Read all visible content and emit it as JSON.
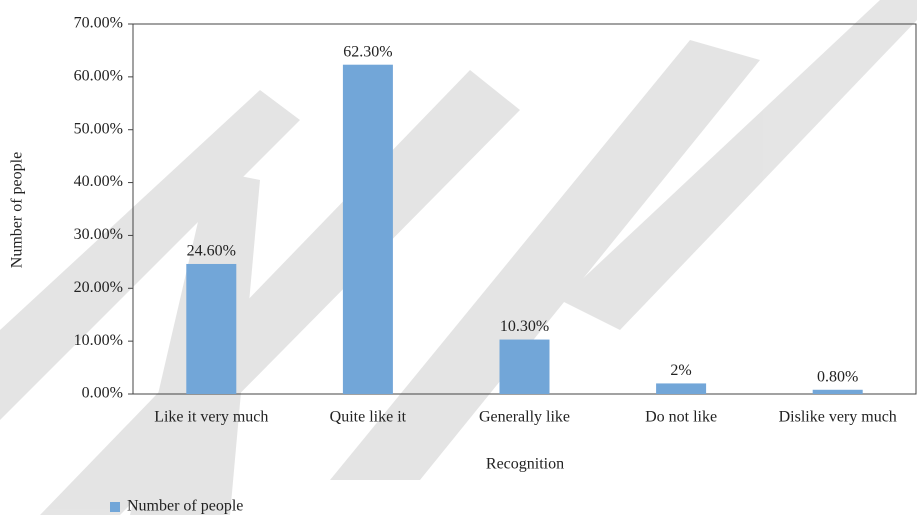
{
  "chart_data": {
    "type": "bar",
    "x_label": "Recognition",
    "y_label": "Number of people",
    "categories": [
      "Like it very much",
      "Quite like it",
      "Generally like",
      "Do not like",
      "Dislike very much"
    ],
    "series": [
      {
        "name": "Number of people",
        "color": "#72a6d8",
        "values": [
          24.6,
          62.3,
          10.3,
          2,
          0.8
        ],
        "value_labels": [
          "24.60%",
          "62.30%",
          "10.30%",
          "2%",
          "0.80%"
        ]
      }
    ],
    "ylim": [
      0,
      70
    ],
    "yticks": [
      {
        "value": 0,
        "label": "0.00%"
      },
      {
        "value": 10,
        "label": "10.00%"
      },
      {
        "value": 20,
        "label": "20.00%"
      },
      {
        "value": 30,
        "label": "30.00%"
      },
      {
        "value": 40,
        "label": "40.00%"
      },
      {
        "value": 50,
        "label": "50.00%"
      },
      {
        "value": 60,
        "label": "60.00%"
      },
      {
        "value": 70,
        "label": "70.00%"
      }
    ],
    "legend": "bottom-left"
  }
}
